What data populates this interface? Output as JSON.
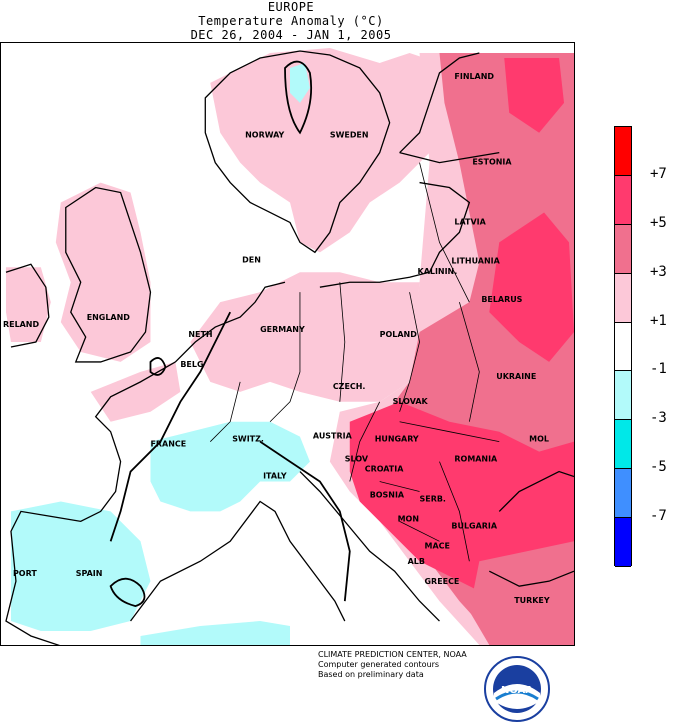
{
  "header": {
    "region": "EUROPE",
    "subtitle": "Temperature Anomaly (°C)",
    "period": "DEC 26, 2004 - JAN  1, 2005"
  },
  "map": {
    "labels": {
      "finland": "FINLAND",
      "norway": "NORWAY",
      "sweden": "SWEDEN",
      "estonia": "ESTONIA",
      "latvia": "LATVIA",
      "lithuania": "LITHUANIA",
      "kaliningrad": "KALININ.",
      "denmark": "DEN",
      "belarus": "BELARUS",
      "ireland": "RELAND",
      "england": "ENGLAND",
      "netherlands": "NETH",
      "belgium": "BELG",
      "germany": "GERMANY",
      "poland": "POLAND",
      "czech": "CZECH.",
      "slovakia": "SLOVAK",
      "ukraine": "UKRAINE",
      "austria": "AUSTRIA",
      "hungary": "HUNGARY",
      "moldova": "MOL",
      "france": "FRANCE",
      "switzerland": "SWITZ.",
      "slovenia": "SLOV",
      "croatia": "CROATIA",
      "romania": "ROMANIA",
      "italy": "ITALY",
      "bosnia": "BOSNIA",
      "serbia": "SERB.",
      "bulgaria": "BULGARIA",
      "montenegro": "MON",
      "macedonia": "MACE",
      "albania": "ALB",
      "greece": "GREECE",
      "portugal": "PORT",
      "spain": "SPAIN",
      "turkey": "TURKEY"
    }
  },
  "legend": {
    "title": "",
    "ticks": [
      "+7",
      "+5",
      "+3",
      "+1",
      "-1",
      "-3",
      "-5",
      "-7"
    ],
    "bins": [
      {
        "color": "#ff0000"
      },
      {
        "color": "#ff3a6e"
      },
      {
        "color": "#f0708e"
      },
      {
        "color": "#fcc8d8"
      },
      {
        "color": "#ffffff"
      },
      {
        "color": "#b2fafa"
      },
      {
        "color": "#00e8e8"
      },
      {
        "color": "#3f8fff"
      },
      {
        "color": "#0000ff"
      }
    ]
  },
  "credits": {
    "line1": "CLIMATE PREDICTION CENTER, NOAA",
    "line2": "Computer generated contours",
    "line3": "Based on preliminary data",
    "logo_text": "NOAA"
  },
  "colors": {
    "light_pink": "#fcc8d8",
    "medium_pink": "#f0708e",
    "deep_pink": "#ff3a6e",
    "light_cyan": "#b2fafa",
    "cyan": "#00e8e8"
  }
}
